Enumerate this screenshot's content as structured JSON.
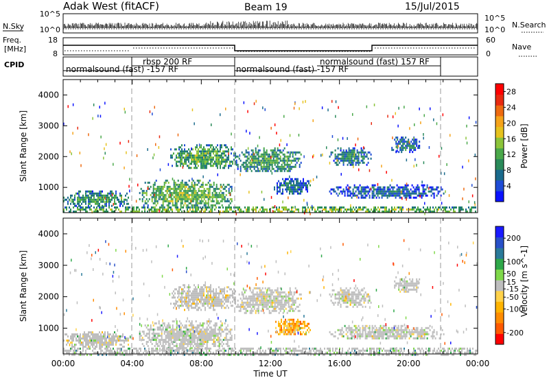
{
  "header": {
    "station": "Adak West (fitACF)",
    "beam": "Beam 19",
    "date": "15/Jul/2015"
  },
  "panels": {
    "nsky": {
      "label": "N.Sky",
      "ticks": [
        "10^5",
        "10^0"
      ],
      "right_label": "N.Search",
      "right_ticks": [
        "10^5",
        "10^0"
      ]
    },
    "freq": {
      "label_top": "Freq.",
      "label_unit": "[MHz]",
      "ticks": [
        "18",
        "8"
      ],
      "right_label": "Nave",
      "right_ticks": [
        "60",
        "0"
      ]
    },
    "cpid": {
      "label": "CPID",
      "segments": [
        {
          "name": "normalsound (fast) -157 RF",
          "start": 0,
          "end": 4
        },
        {
          "name": "rbsp 200 RF",
          "start": 4,
          "end": 10
        },
        {
          "name": "normalsound (fast) -157 RF",
          "start": 10,
          "end": 22
        },
        {
          "name": "normalsound (fast) 157 RF",
          "start": 14,
          "end": 22
        }
      ]
    }
  },
  "colors": {
    "power": [
      "#0a12ff",
      "#1f4cd6",
      "#1a6a8c",
      "#2a8a5a",
      "#4aa84a",
      "#8cc43a",
      "#e6c21e",
      "#f5a31a",
      "#ee6a10",
      "#e82a10",
      "#ff0000"
    ],
    "velocity": [
      "#ff0000",
      "#ff5a00",
      "#ff8c00",
      "#ffb400",
      "#ffd24a",
      "#bebebe",
      "#7fd84a",
      "#2fa84a",
      "#2a7a9a",
      "#2850c8",
      "#1a1aff"
    ],
    "ground_scatter": "#bebebe"
  },
  "chart_data": [
    {
      "type": "heatmap",
      "name": "power",
      "xlabel": "",
      "ylabel": "Slant Range [km]",
      "x_unit": "hours UT",
      "xlim": [
        0,
        24
      ],
      "ylim": [
        180,
        4500
      ],
      "y_ticks": [
        "1000",
        "2000",
        "3000",
        "4000"
      ],
      "colorbar": {
        "label": "Power [dB]",
        "ticks": [
          "4",
          "8",
          "12",
          "16",
          "20",
          "24",
          "28"
        ],
        "range": [
          0,
          30
        ]
      },
      "regions": [
        {
          "t0": 0.0,
          "t1": 3.8,
          "r0": 400,
          "r1": 900,
          "level": 0.35
        },
        {
          "t0": 4.4,
          "t1": 9.8,
          "r0": 330,
          "r1": 1250,
          "level": 0.45
        },
        {
          "t0": 6.2,
          "t1": 10.0,
          "r0": 1600,
          "r1": 2400,
          "level": 0.42
        },
        {
          "t0": 10.0,
          "t1": 13.8,
          "r0": 1500,
          "r1": 2300,
          "level": 0.38
        },
        {
          "t0": 12.2,
          "t1": 14.3,
          "r0": 800,
          "r1": 1300,
          "level": 0.25
        },
        {
          "t0": 15.4,
          "t1": 17.8,
          "r0": 1700,
          "r1": 2300,
          "level": 0.3
        },
        {
          "t0": 19.0,
          "t1": 20.6,
          "r0": 2150,
          "r1": 2650,
          "level": 0.28
        },
        {
          "t0": 15.4,
          "t1": 22.0,
          "r0": 650,
          "r1": 1100,
          "level": 0.22
        },
        {
          "t0": 0.0,
          "t1": 24.0,
          "r0": 180,
          "r1": 380,
          "level": 0.5
        }
      ]
    },
    {
      "type": "heatmap",
      "name": "velocity",
      "xlabel": "Time UT",
      "ylabel": "Slant Range [km]",
      "x_unit": "hours UT",
      "xlim": [
        0,
        24
      ],
      "ylim": [
        180,
        4500
      ],
      "x_ticks": [
        "00:00",
        "04:00",
        "08:00",
        "12:00",
        "16:00",
        "20:00",
        "00:00"
      ],
      "y_ticks": [
        "1000",
        "2000",
        "3000",
        "4000"
      ],
      "colorbar": {
        "label": "Velocity [m s^-1]",
        "ticks": [
          "200",
          "100",
          "50",
          "15",
          "-15",
          "-50",
          "-100",
          "-200"
        ],
        "range": [
          -250,
          250
        ]
      },
      "regions": [
        {
          "t0": 0.0,
          "t1": 3.8,
          "r0": 400,
          "r1": 900,
          "level": 0.5
        },
        {
          "t0": 4.4,
          "t1": 9.8,
          "r0": 330,
          "r1": 1250,
          "level": 0.5
        },
        {
          "t0": 6.2,
          "t1": 10.0,
          "r0": 1600,
          "r1": 2400,
          "level": 0.45
        },
        {
          "t0": 10.0,
          "t1": 13.8,
          "r0": 1500,
          "r1": 2300,
          "level": 0.48
        },
        {
          "t0": 12.2,
          "t1": 14.3,
          "r0": 800,
          "r1": 1300,
          "level": 0.32
        },
        {
          "t0": 15.4,
          "t1": 17.8,
          "r0": 1700,
          "r1": 2300,
          "level": 0.47
        },
        {
          "t0": 19.0,
          "t1": 20.6,
          "r0": 2150,
          "r1": 2650,
          "level": 0.5
        },
        {
          "t0": 15.4,
          "t1": 22.0,
          "r0": 650,
          "r1": 1100,
          "level": 0.5
        },
        {
          "t0": 0.0,
          "t1": 24.0,
          "r0": 180,
          "r1": 380,
          "level": 0.62
        }
      ]
    }
  ]
}
